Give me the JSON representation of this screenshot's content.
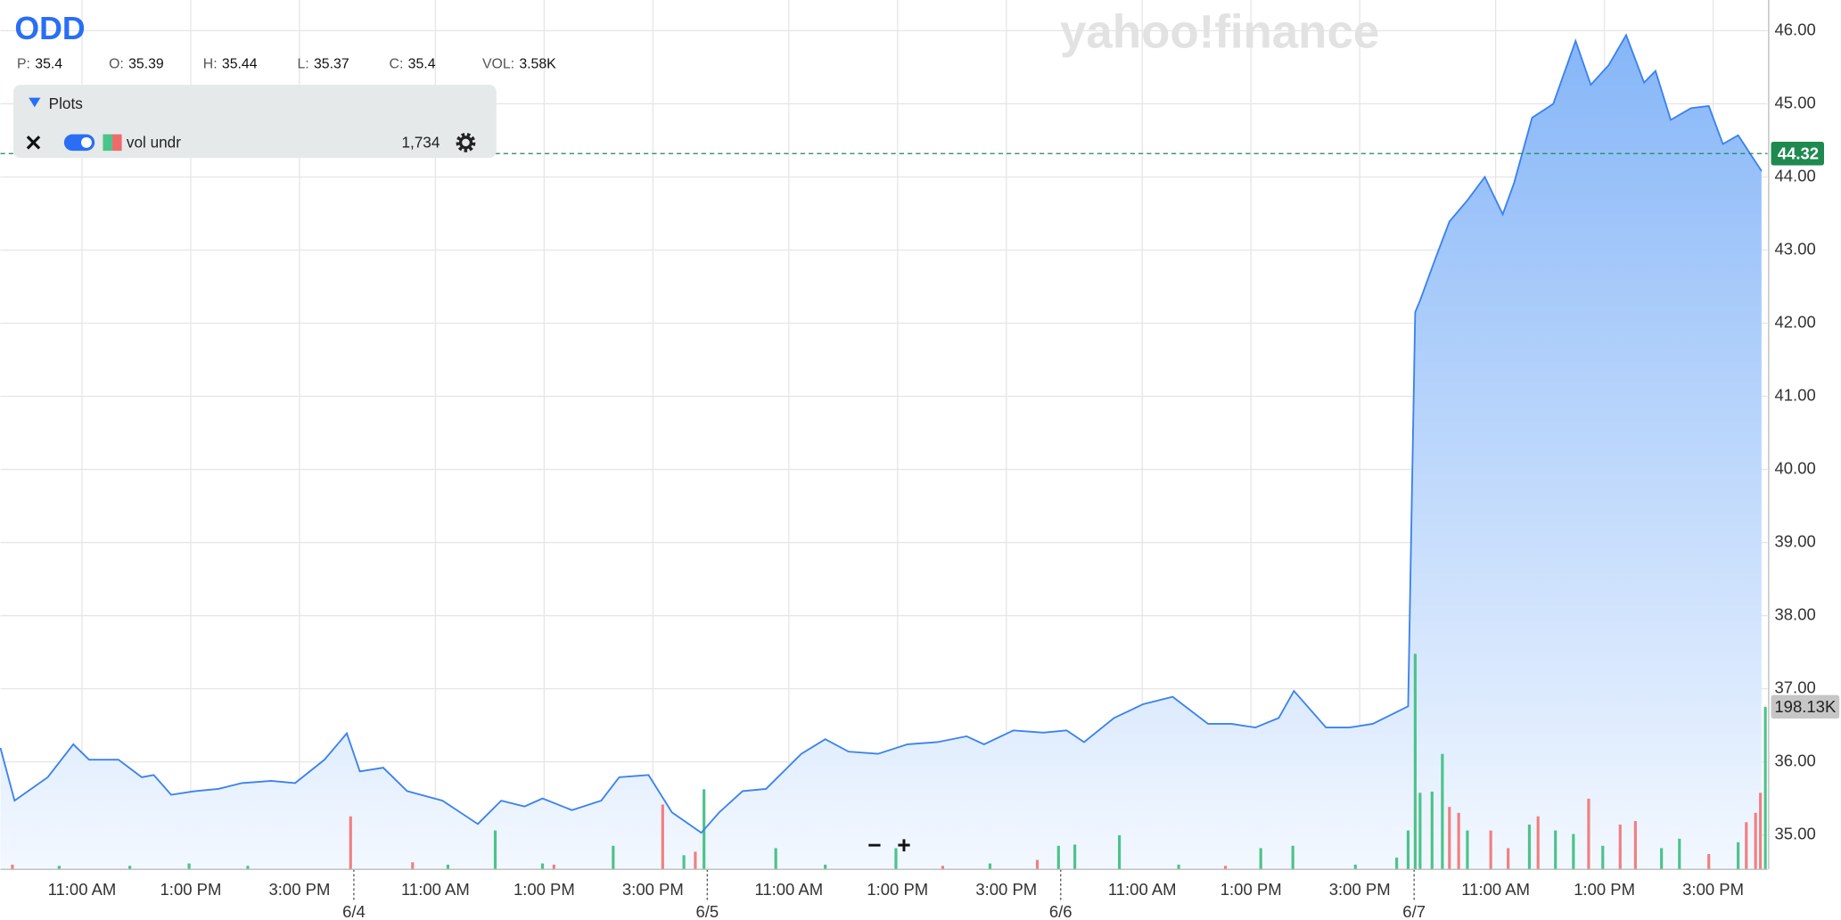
{
  "header": {
    "symbol": "ODD",
    "quote": [
      {
        "label": "P:",
        "value": 35.4
      },
      {
        "label": "O:",
        "value": 35.39
      },
      {
        "label": "H:",
        "value": 35.44
      },
      {
        "label": "L:",
        "value": 35.37
      },
      {
        "label": "C:",
        "value": 35.4
      },
      {
        "label": "VOL:",
        "value": "3.58K"
      }
    ]
  },
  "plots_panel": {
    "title": "Plots",
    "study": "vol undr",
    "study_value": "1,734"
  },
  "watermark": "yahoo!finance",
  "zoom": [
    "−",
    "+"
  ],
  "chart_data": {
    "type": "area",
    "color": "#3b82f0",
    "x": [
      0,
      0.26,
      0.87,
      1.34,
      1.63,
      2.17,
      2.6,
      2.82,
      3.14,
      3.58,
      4.01,
      4.44,
      4.98,
      5.42,
      5.96,
      6.37,
      6.61,
      7.04,
      7.48,
      8.13,
      8.78,
      9.21,
      9.64,
      9.97,
      10.51,
      11.05,
      11.38,
      11.92,
      12.35,
      12.89,
      13.22,
      13.65,
      14.08,
      14.73,
      15.17,
      15.6,
      16.14,
      16.68,
      17.23,
      17.77,
      18.09,
      18.63,
      19.18,
      19.61,
      19.93,
      20.48,
      21.02,
      21.56,
      22.21,
      22.64,
      23.08,
      23.51,
      23.79,
      24.38,
      24.81,
      25.24,
      25.89,
      26.02,
      26.11,
      26.39,
      26.65,
      26.98,
      27.3,
      27.63,
      27.84,
      28.17,
      28.56,
      28.97,
      29.25,
      29.58,
      29.9,
      30.23,
      30.44,
      30.72,
      31.09,
      31.42,
      31.68,
      31.96,
      32.39
    ],
    "values": [
      36.19,
      35.47,
      35.79,
      36.24,
      36.03,
      36.03,
      35.79,
      35.82,
      35.55,
      35.6,
      35.63,
      35.71,
      35.74,
      35.71,
      36.03,
      36.39,
      35.87,
      35.92,
      35.6,
      35.47,
      35.15,
      35.47,
      35.39,
      35.5,
      35.34,
      35.47,
      35.79,
      35.82,
      35.31,
      35.03,
      35.31,
      35.6,
      35.63,
      36.11,
      36.31,
      36.14,
      36.11,
      36.24,
      36.27,
      36.35,
      36.24,
      36.43,
      36.4,
      36.43,
      36.27,
      36.6,
      36.79,
      36.89,
      36.52,
      36.52,
      36.47,
      36.6,
      36.97,
      36.47,
      36.47,
      36.52,
      36.76,
      42.15,
      42.31,
      42.88,
      43.39,
      43.68,
      44.0,
      43.49,
      43.92,
      44.81,
      45.0,
      45.86,
      45.26,
      45.53,
      45.94,
      45.29,
      45.45,
      44.78,
      44.94,
      44.97,
      44.45,
      44.57,
      44.08
    ],
    "last_value": 44.32,
    "last_value_color": "#1f8a50",
    "xlim": [
      0,
      32.5
    ],
    "xticks": [
      {
        "value": 1.5,
        "label": "11:00 AM"
      },
      {
        "value": 3.5,
        "label": "1:00 PM"
      },
      {
        "value": 5.5,
        "label": "3:00 PM"
      },
      {
        "value": 6.5,
        "label": "6/4"
      },
      {
        "value": 8,
        "label": "11:00 AM"
      },
      {
        "value": 10,
        "label": "1:00 PM"
      },
      {
        "value": 12,
        "label": "3:00 PM"
      },
      {
        "value": 13,
        "label": "6/5"
      },
      {
        "value": 14.5,
        "label": "11:00 AM"
      },
      {
        "value": 16.5,
        "label": "1:00 PM"
      },
      {
        "value": 18.5,
        "label": "3:00 PM"
      },
      {
        "value": 19.5,
        "label": "6/6"
      },
      {
        "value": 21,
        "label": "11:00 AM"
      },
      {
        "value": 23,
        "label": "1:00 PM"
      },
      {
        "value": 25,
        "label": "3:00 PM"
      },
      {
        "value": 26,
        "label": "6/7"
      },
      {
        "value": 27.5,
        "label": "11:00 AM"
      },
      {
        "value": 29.5,
        "label": "1:00 PM"
      },
      {
        "value": 31.5,
        "label": "3:00 PM"
      }
    ],
    "session_hours": 6.5,
    "ylim": [
      34.53,
      46.42
    ],
    "yticks": [
      {
        "value": 35,
        "label": "35.00"
      },
      {
        "value": 36,
        "label": "36.00"
      },
      {
        "value": 37,
        "label": "37.00"
      },
      {
        "value": 38,
        "label": "38.00"
      },
      {
        "value": 39,
        "label": "39.00"
      },
      {
        "value": 40,
        "label": "40.00"
      },
      {
        "value": 41,
        "label": "41.00"
      },
      {
        "value": 42,
        "label": "42.00"
      },
      {
        "value": 43,
        "label": "43.00"
      },
      {
        "value": 44,
        "label": "44.00"
      },
      {
        "value": 45,
        "label": "45.00"
      },
      {
        "value": 46,
        "label": "46.00"
      }
    ],
    "grid": true,
    "y2lim": [
      0,
      1059600
    ],
    "volume_series": [
      {
        "color": "#4cc38a",
        "axis": "y2",
        "x": [
          1.08,
          2.38,
          3.47,
          4.55,
          8.23,
          9.1,
          9.97,
          11.27,
          12.57,
          12.94,
          14.26,
          15.17,
          16.47,
          18.2,
          19.46,
          19.76,
          20.58,
          21.67,
          23.18,
          23.77,
          24.92,
          25.68,
          25.89,
          26.02,
          26.11,
          26.33,
          26.52,
          26.98,
          28.12,
          28.6,
          28.93,
          29.47,
          30.55,
          30.88,
          31.96,
          32.46
        ],
        "values": [
          4310,
          4310,
          7180,
          4310,
          5740,
          47380,
          7180,
          28710,
          17230,
          97630,
          25840,
          5740,
          25840,
          7180,
          28710,
          30150,
          41640,
          5740,
          25840,
          28710,
          5740,
          14360,
          47380,
          262730,
          93320,
          94760,
          140700,
          47380,
          54560,
          47380,
          43070,
          28710,
          25840,
          37330,
          33020,
          198130
        ]
      },
      {
        "color": "#f08080",
        "axis": "y2",
        "x": [
          0.22,
          6.44,
          7.58,
          10.18,
          12.18,
          12.78,
          17.33,
          19.07,
          22.53,
          26.65,
          26.82,
          27.41,
          27.73,
          28.28,
          29.21,
          29.79,
          30.07,
          31.42,
          32.11,
          32.28,
          32.37
        ],
        "values": [
          5740,
          64600,
          8610,
          5740,
          78960,
          21540,
          4310,
          11490,
          4310,
          76090,
          68910,
          47380,
          25840,
          64610,
          86140,
          54560,
          58860,
          18660,
          57430,
          68910,
          93320
        ]
      }
    ],
    "last_volume": {
      "value": 198130,
      "label": "198.13K"
    }
  }
}
